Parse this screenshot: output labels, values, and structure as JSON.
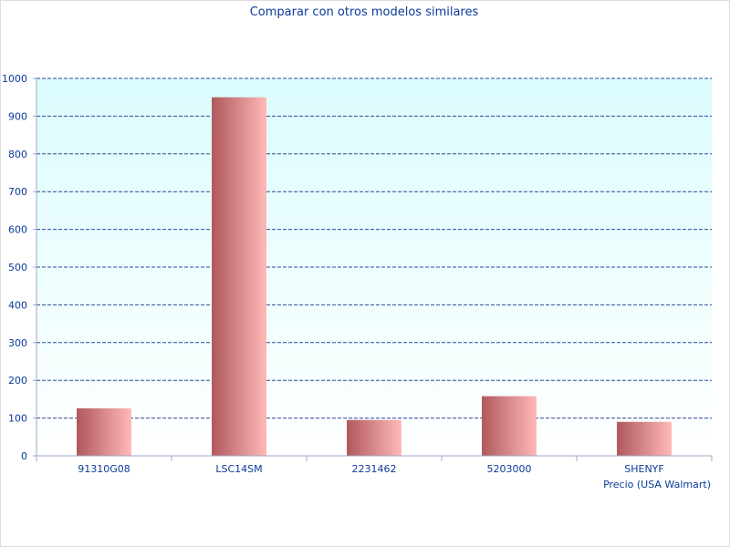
{
  "chart_data": {
    "type": "bar",
    "title": "Comparar con otros modelos similares",
    "xlabel": "Precio (USA Walmart)",
    "ylabel": "",
    "categories": [
      "91310G08",
      "LSC14SM",
      "2231462",
      "5203000",
      "SHENYF"
    ],
    "values": [
      126,
      950,
      95,
      158,
      90
    ],
    "ylim": [
      0,
      1000
    ],
    "yticks": [
      0,
      100,
      200,
      300,
      400,
      500,
      600,
      700,
      800,
      900,
      1000
    ],
    "grid": true,
    "legend": "none"
  },
  "colors": {
    "text": "#0b3a99",
    "grid": "#2b4a9a",
    "axis": "#9aa9c9",
    "plot_bg_top": "#dcfcfd",
    "plot_bg_bottom": "#ffffff",
    "bar_dark": "#b0585c",
    "bar_light": "#ffb9b8"
  }
}
